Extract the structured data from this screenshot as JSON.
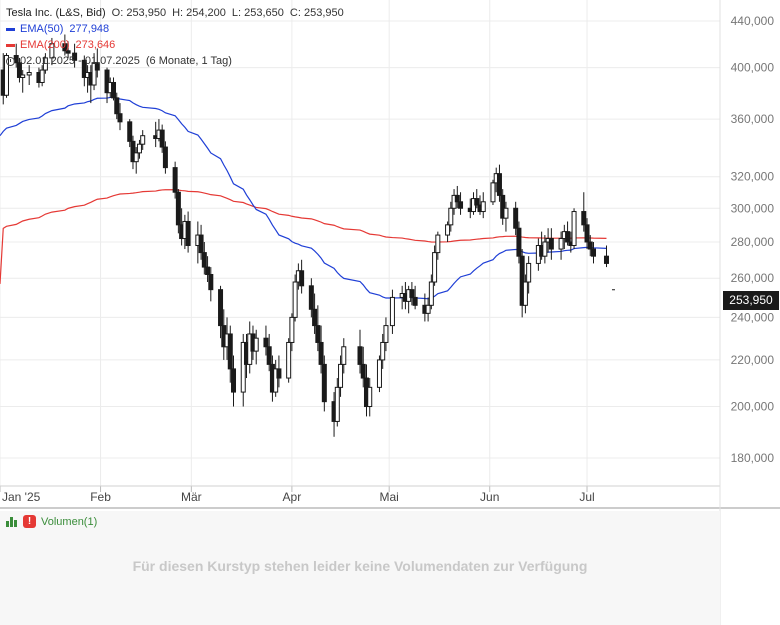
{
  "legend": {
    "title": "Tesla Inc. (L&S, Bid)",
    "open": "O: 253,950",
    "high": "H: 254,200",
    "low": "L: 253,650",
    "close": "C: 253,950",
    "ema50_label": "EMA(50)",
    "ema50_value": "277,948",
    "ema200_label": "EMA(200)",
    "ema200_value": "273,646",
    "range": "02.01.2025 - 01.07.2025",
    "period": "(6 Monate, 1 Tag)"
  },
  "volume": {
    "label": "Volumen(1)",
    "message": "Für diesen Kurstyp stehen leider keine Volumendaten zur Verfügung"
  },
  "price_badge": "253,950",
  "colors": {
    "ema50": "#1f3fd6",
    "ema200": "#e53935",
    "candle": "#1a1a1a",
    "grid": "#ececec"
  },
  "chart_data": {
    "type": "candlestick",
    "ylim": [
      170,
      450
    ],
    "log_scale": true,
    "y_ticks": [
      {
        "value": 180,
        "label": "180,000"
      },
      {
        "value": 200,
        "label": "200,000"
      },
      {
        "value": 220,
        "label": "220,000"
      },
      {
        "value": 240,
        "label": "240,000"
      },
      {
        "value": 260,
        "label": "260,000"
      },
      {
        "value": 280,
        "label": "280,000"
      },
      {
        "value": 300,
        "label": "300,000"
      },
      {
        "value": 320,
        "label": "320,000"
      },
      {
        "value": 360,
        "label": "360,000"
      },
      {
        "value": 400,
        "label": "400,000"
      },
      {
        "value": 440,
        "label": "440,000"
      }
    ],
    "x_ticks": [
      {
        "date": "2025-01-01",
        "label": "Jan '25"
      },
      {
        "date": "2025-02-01",
        "label": "Feb"
      },
      {
        "date": "2025-03-01",
        "label": "Mär"
      },
      {
        "date": "2025-04-01",
        "label": "Apr"
      },
      {
        "date": "2025-05-01",
        "label": "Mai"
      },
      {
        "date": "2025-06-01",
        "label": "Jun"
      },
      {
        "date": "2025-07-01",
        "label": "Jul"
      }
    ],
    "x_range": [
      "2025-01-01",
      "2025-08-11"
    ],
    "candles": [
      [
        "2025-01-02",
        398,
        412,
        371,
        378
      ],
      [
        "2025-01-03",
        378,
        412,
        376,
        410
      ],
      [
        "2025-01-06",
        410,
        420,
        400,
        404
      ],
      [
        "2025-01-07",
        404,
        408,
        388,
        392
      ],
      [
        "2025-01-08",
        392,
        398,
        380,
        394
      ],
      [
        "2025-01-10",
        394,
        402,
        386,
        396
      ],
      [
        "2025-01-13",
        396,
        400,
        384,
        388
      ],
      [
        "2025-01-14",
        388,
        402,
        385,
        398
      ],
      [
        "2025-01-15",
        398,
        412,
        395,
        408
      ],
      [
        "2025-01-17",
        408,
        425,
        402,
        420
      ],
      [
        "2025-01-21",
        420,
        428,
        410,
        414
      ],
      [
        "2025-01-22",
        414,
        422,
        408,
        412
      ],
      [
        "2025-01-24",
        412,
        420,
        400,
        406
      ],
      [
        "2025-01-27",
        406,
        410,
        385,
        392
      ],
      [
        "2025-01-28",
        392,
        402,
        380,
        396
      ],
      [
        "2025-01-29",
        396,
        402,
        372,
        386
      ],
      [
        "2025-01-30",
        386,
        412,
        382,
        404
      ],
      [
        "2025-01-31",
        404,
        416,
        392,
        398
      ],
      [
        "2025-02-03",
        398,
        400,
        372,
        380
      ],
      [
        "2025-02-04",
        380,
        392,
        376,
        388
      ],
      [
        "2025-02-05",
        388,
        392,
        374,
        376
      ],
      [
        "2025-02-06",
        376,
        380,
        360,
        364
      ],
      [
        "2025-02-07",
        364,
        372,
        352,
        358
      ],
      [
        "2025-02-10",
        358,
        360,
        340,
        344
      ],
      [
        "2025-02-11",
        344,
        348,
        325,
        330
      ],
      [
        "2025-02-12",
        330,
        340,
        322,
        336
      ],
      [
        "2025-02-13",
        336,
        345,
        332,
        342
      ],
      [
        "2025-02-14",
        342,
        352,
        338,
        348
      ],
      [
        "2025-02-18",
        348,
        358,
        340,
        346
      ],
      [
        "2025-02-19",
        346,
        360,
        344,
        352
      ],
      [
        "2025-02-20",
        352,
        356,
        336,
        340
      ],
      [
        "2025-02-21",
        340,
        344,
        322,
        326
      ],
      [
        "2025-02-24",
        326,
        330,
        306,
        310
      ],
      [
        "2025-02-25",
        310,
        312,
        285,
        290
      ],
      [
        "2025-02-26",
        290,
        300,
        278,
        282
      ],
      [
        "2025-02-27",
        282,
        296,
        276,
        292
      ],
      [
        "2025-02-28",
        292,
        298,
        274,
        278
      ],
      [
        "2025-03-03",
        278,
        292,
        268,
        284
      ],
      [
        "2025-03-04",
        284,
        290,
        270,
        274
      ],
      [
        "2025-03-05",
        274,
        280,
        262,
        266
      ],
      [
        "2025-03-06",
        266,
        272,
        258,
        262
      ],
      [
        "2025-03-07",
        262,
        266,
        248,
        254
      ],
      [
        "2025-03-10",
        254,
        256,
        230,
        236
      ],
      [
        "2025-03-11",
        236,
        244,
        220,
        226
      ],
      [
        "2025-03-12",
        226,
        240,
        220,
        232
      ],
      [
        "2025-03-13",
        232,
        236,
        210,
        216
      ],
      [
        "2025-03-14",
        216,
        222,
        200,
        206
      ],
      [
        "2025-03-17",
        206,
        232,
        200,
        228
      ],
      [
        "2025-03-18",
        228,
        232,
        212,
        218
      ],
      [
        "2025-03-19",
        218,
        238,
        214,
        232
      ],
      [
        "2025-03-20",
        232,
        236,
        220,
        224
      ],
      [
        "2025-03-21",
        224,
        234,
        218,
        230
      ],
      [
        "2025-03-24",
        230,
        236,
        222,
        226
      ],
      [
        "2025-03-25",
        226,
        232,
        215,
        218
      ],
      [
        "2025-03-26",
        218,
        222,
        202,
        206
      ],
      [
        "2025-03-27",
        206,
        220,
        204,
        216
      ],
      [
        "2025-03-28",
        216,
        222,
        208,
        212
      ],
      [
        "2025-03-31",
        212,
        230,
        210,
        228
      ],
      [
        "2025-04-01",
        228,
        242,
        224,
        240
      ],
      [
        "2025-04-02",
        240,
        262,
        238,
        258
      ],
      [
        "2025-04-03",
        258,
        268,
        254,
        264
      ],
      [
        "2025-04-04",
        264,
        270,
        252,
        256
      ],
      [
        "2025-04-07",
        256,
        260,
        240,
        244
      ],
      [
        "2025-04-08",
        244,
        252,
        232,
        236
      ],
      [
        "2025-04-09",
        236,
        246,
        224,
        228
      ],
      [
        "2025-04-10",
        228,
        236,
        214,
        218
      ],
      [
        "2025-04-11",
        218,
        222,
        198,
        202
      ],
      [
        "2025-04-14",
        202,
        206,
        188,
        194
      ],
      [
        "2025-04-15",
        194,
        212,
        192,
        208
      ],
      [
        "2025-04-16",
        208,
        222,
        204,
        218
      ],
      [
        "2025-04-17",
        218,
        230,
        214,
        226
      ],
      [
        "2025-04-22",
        226,
        234,
        214,
        218
      ],
      [
        "2025-04-23",
        218,
        226,
        208,
        212
      ],
      [
        "2025-04-24",
        212,
        218,
        196,
        200
      ],
      [
        "2025-04-25",
        200,
        212,
        196,
        208
      ],
      [
        "2025-04-28",
        208,
        222,
        206,
        220
      ],
      [
        "2025-04-29",
        220,
        232,
        216,
        228
      ],
      [
        "2025-04-30",
        228,
        240,
        224,
        236
      ],
      [
        "2025-05-02",
        236,
        254,
        232,
        250
      ],
      [
        "2025-05-05",
        250,
        256,
        244,
        252
      ],
      [
        "2025-05-06",
        252,
        258,
        244,
        248
      ],
      [
        "2025-05-07",
        248,
        256,
        242,
        254
      ],
      [
        "2025-05-08",
        254,
        258,
        246,
        250
      ],
      [
        "2025-05-09",
        250,
        256,
        244,
        246
      ],
      [
        "2025-05-12",
        246,
        252,
        238,
        242
      ],
      [
        "2025-05-13",
        242,
        250,
        238,
        246
      ],
      [
        "2025-05-14",
        246,
        262,
        244,
        258
      ],
      [
        "2025-05-15",
        258,
        278,
        256,
        274
      ],
      [
        "2025-05-16",
        274,
        286,
        270,
        284
      ],
      [
        "2025-05-19",
        284,
        292,
        280,
        290
      ],
      [
        "2025-05-20",
        290,
        304,
        286,
        300
      ],
      [
        "2025-05-21",
        300,
        312,
        296,
        308
      ],
      [
        "2025-05-22",
        308,
        314,
        300,
        304
      ],
      [
        "2025-05-23",
        304,
        310,
        296,
        300
      ],
      [
        "2025-05-26",
        300,
        306,
        294,
        298
      ],
      [
        "2025-05-27",
        298,
        310,
        296,
        306
      ],
      [
        "2025-05-28",
        306,
        312,
        300,
        302
      ],
      [
        "2025-05-29",
        302,
        308,
        296,
        298
      ],
      [
        "2025-05-30",
        298,
        310,
        294,
        304
      ],
      [
        "2025-06-02",
        304,
        318,
        302,
        316
      ],
      [
        "2025-06-03",
        316,
        326,
        310,
        322
      ],
      [
        "2025-06-04",
        322,
        328,
        304,
        308
      ],
      [
        "2025-06-05",
        308,
        312,
        290,
        294
      ],
      [
        "2025-06-06",
        294,
        304,
        286,
        300
      ],
      [
        "2025-06-09",
        300,
        304,
        284,
        288
      ],
      [
        "2025-06-10",
        288,
        292,
        268,
        272
      ],
      [
        "2025-06-11",
        272,
        276,
        240,
        246
      ],
      [
        "2025-06-12",
        246,
        262,
        242,
        258
      ],
      [
        "2025-06-13",
        258,
        272,
        252,
        268
      ],
      [
        "2025-06-16",
        268,
        282,
        264,
        278
      ],
      [
        "2025-06-17",
        278,
        286,
        270,
        272
      ],
      [
        "2025-06-18",
        272,
        284,
        268,
        280
      ],
      [
        "2025-06-19",
        280,
        288,
        274,
        282
      ],
      [
        "2025-06-20",
        282,
        288,
        270,
        276
      ],
      [
        "2025-06-23",
        276,
        286,
        270,
        282
      ],
      [
        "2025-06-24",
        282,
        290,
        276,
        286
      ],
      [
        "2025-06-25",
        286,
        292,
        278,
        280
      ],
      [
        "2025-06-26",
        280,
        286,
        274,
        278
      ],
      [
        "2025-06-27",
        278,
        300,
        276,
        298
      ],
      [
        "2025-06-30",
        298,
        310,
        286,
        290
      ],
      [
        "2025-07-01",
        290,
        294,
        276,
        280
      ],
      [
        "2025-07-02",
        280,
        284,
        272,
        276
      ],
      [
        "2025-07-03",
        276,
        280,
        268,
        272
      ],
      [
        "2025-07-07",
        272,
        278,
        266,
        268
      ]
    ],
    "ema50_start": 350,
    "ema200_start": 287,
    "last_price": 253.95,
    "last_price_date": "2025-07-09"
  }
}
